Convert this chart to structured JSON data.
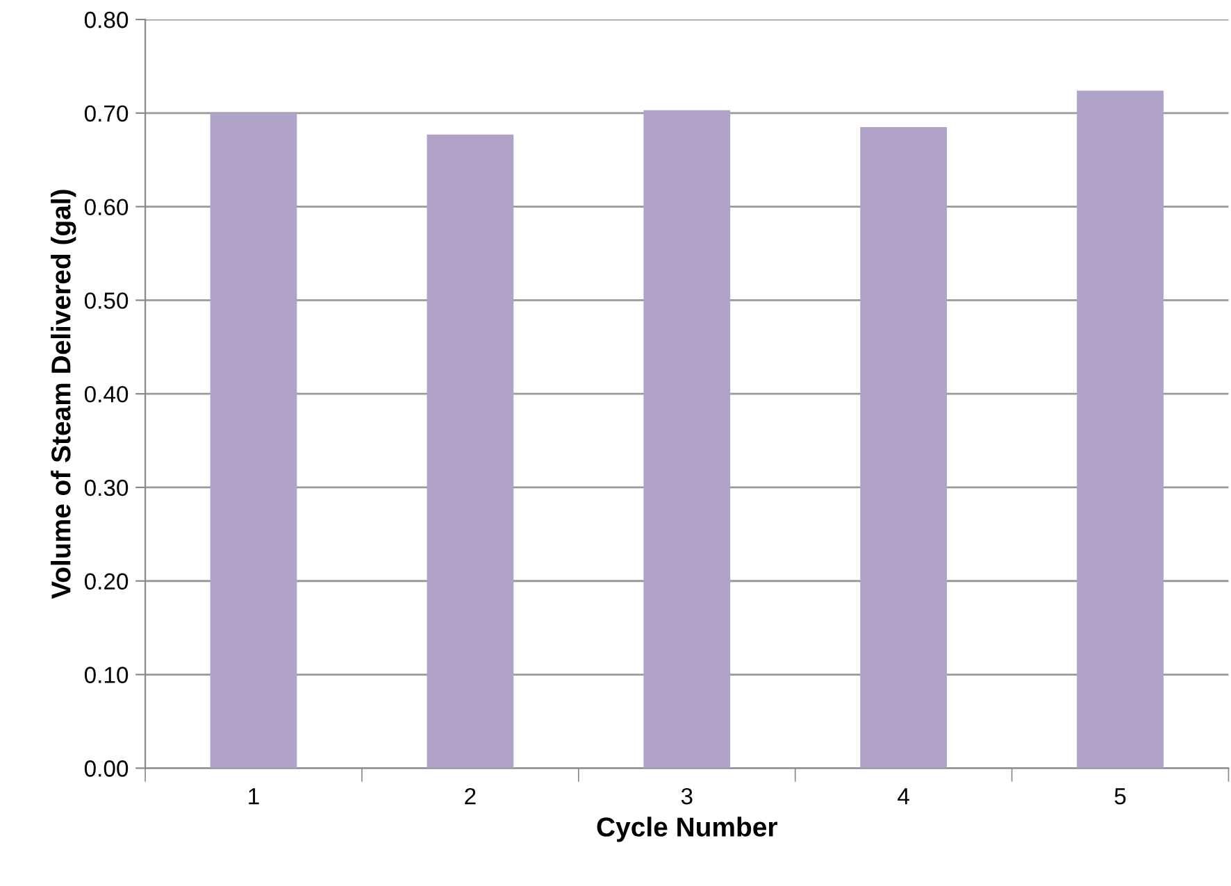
{
  "chart_data": {
    "type": "bar",
    "xlabel": "Cycle Number",
    "ylabel": "Volume of Steam Delivered (gal)",
    "categories": [
      "1",
      "2",
      "3",
      "4",
      "5"
    ],
    "values": [
      0.7,
      0.677,
      0.703,
      0.685,
      0.724
    ],
    "color": "#b1a2c8",
    "ylim": [
      0,
      0.8
    ],
    "yticks": [
      {
        "value": 0,
        "label": "0.00"
      },
      {
        "value": 0.1,
        "label": "0.10"
      },
      {
        "value": 0.2,
        "label": "0.20"
      },
      {
        "value": 0.3,
        "label": "0.30"
      },
      {
        "value": 0.4,
        "label": "0.40"
      },
      {
        "value": 0.5,
        "label": "0.50"
      },
      {
        "value": 0.6,
        "label": "0.60"
      },
      {
        "value": 0.7,
        "label": "0.70"
      },
      {
        "value": 0.8,
        "label": "0.80"
      }
    ],
    "grid": "y",
    "legend": false
  }
}
